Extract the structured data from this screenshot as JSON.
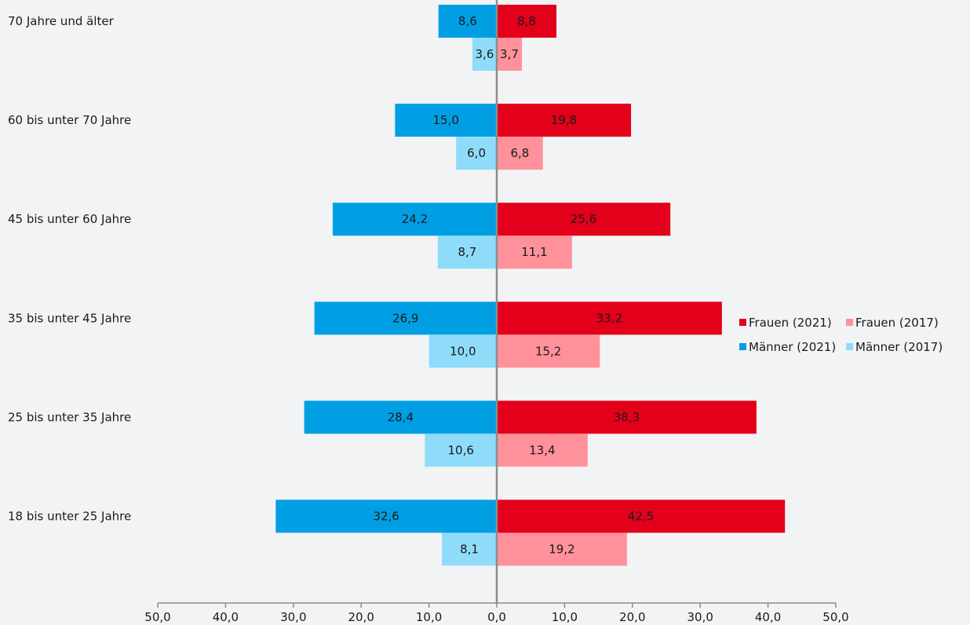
{
  "chart_data": {
    "type": "bar",
    "orientation": "horizontal-butterfly",
    "title": "",
    "xlabel": "",
    "ylabel": "",
    "categories": [
      "70 Jahre und älter",
      "60 bis unter 70 Jahre",
      "45 bis unter 60 Jahre",
      "35 bis unter 45 Jahre",
      "25 bis unter 35 Jahre",
      "18 bis unter 25 Jahre"
    ],
    "series": [
      {
        "name": "Männer (2021)",
        "side": "left",
        "row": 0,
        "color": "#009fe3",
        "values": [
          8.6,
          15.0,
          24.2,
          26.9,
          28.4,
          32.6
        ],
        "labels": [
          "8,6",
          "15,0",
          "24,2",
          "26,9",
          "28,4",
          "32,6"
        ]
      },
      {
        "name": "Männer (2017)",
        "side": "left",
        "row": 1,
        "color": "#8edcfa",
        "values": [
          3.6,
          6.0,
          8.7,
          10.0,
          10.6,
          8.1
        ],
        "labels": [
          "3,6",
          "6,0",
          "8,7",
          "10,0",
          "10,6",
          "8,1"
        ]
      },
      {
        "name": "Frauen (2021)",
        "side": "right",
        "row": 0,
        "color": "#e2001a",
        "values": [
          8.8,
          19.8,
          25.6,
          33.2,
          38.3,
          42.5
        ],
        "labels": [
          "8,8",
          "19,8",
          "25,6",
          "33,2",
          "38,3",
          "42,5"
        ]
      },
      {
        "name": "Frauen (2017)",
        "side": "right",
        "row": 1,
        "color": "#ff919a",
        "values": [
          3.7,
          6.8,
          11.1,
          15.2,
          13.4,
          19.2
        ],
        "labels": [
          "3,7",
          "6,8",
          "11,1",
          "15,2",
          "13,4",
          "19,2"
        ]
      }
    ],
    "xlim": [
      -50,
      50
    ],
    "xticks": [
      -50,
      -40,
      -30,
      -20,
      -10,
      0,
      10,
      20,
      30,
      40,
      50
    ],
    "xtick_labels": [
      "50,0",
      "40,0",
      "30,0",
      "20,0",
      "10,0",
      "0,0",
      "10,0",
      "20,0",
      "30,0",
      "40,0",
      "50,0"
    ],
    "grid": false,
    "legend": {
      "position": "right",
      "items": [
        {
          "name": "Frauen (2021)",
          "color": "#e2001a"
        },
        {
          "name": "Frauen (2017)",
          "color": "#ff919a"
        },
        {
          "name": "Männer (2021)",
          "color": "#009fe3"
        },
        {
          "name": "Männer (2017)",
          "color": "#8edcfa"
        }
      ]
    },
    "colors": {
      "axis": "#8c8c8c",
      "background": "#f2f3f5"
    }
  }
}
